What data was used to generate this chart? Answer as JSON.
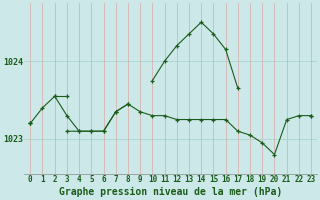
{
  "title": "Graphe pression niveau de la mer (hPa)",
  "bg_color": "#cce8e8",
  "grid_color": "#99ccbb",
  "line_color": "#1a5c1a",
  "marker": "+",
  "x_labels": [
    "0",
    "1",
    "2",
    "3",
    "4",
    "5",
    "6",
    "7",
    "8",
    "9",
    "10",
    "11",
    "12",
    "13",
    "14",
    "15",
    "16",
    "17",
    "18",
    "19",
    "20",
    "21",
    "22",
    "23"
  ],
  "ylim": [
    1022.55,
    1024.75
  ],
  "yticks": [
    1023,
    1024
  ],
  "series": [
    [
      1023.2,
      1023.4,
      1023.55,
      1023.3,
      1023.1,
      1023.1,
      1023.1,
      1023.35,
      1023.45,
      null,
      null,
      null,
      null,
      null,
      null,
      null,
      null,
      null,
      null,
      null,
      null,
      null,
      null,
      null
    ],
    [
      1023.2,
      null,
      null,
      1023.1,
      1023.1,
      1023.1,
      1023.1,
      1023.35,
      1023.45,
      1023.35,
      1023.3,
      1023.3,
      1023.25,
      1023.25,
      1023.25,
      1023.25,
      1023.25,
      1023.1,
      1023.05,
      1022.95,
      1022.8,
      1023.25,
      1023.3,
      1023.3
    ],
    [
      1023.2,
      null,
      null,
      null,
      null,
      null,
      null,
      null,
      null,
      null,
      null,
      null,
      null,
      null,
      null,
      null,
      null,
      null,
      null,
      null,
      null,
      null,
      null,
      1023.3
    ],
    [
      null,
      null,
      1023.55,
      1023.55,
      null,
      null,
      null,
      null,
      null,
      null,
      1023.75,
      1024.0,
      1024.2,
      1024.35,
      1024.5,
      1024.35,
      1024.15,
      1023.65,
      null,
      null,
      null,
      null,
      null,
      null
    ]
  ],
  "figsize": [
    3.2,
    2.0
  ],
  "dpi": 100,
  "title_fontsize": 7,
  "tick_fontsize": 5.5,
  "label_color": "#1a5c1a"
}
